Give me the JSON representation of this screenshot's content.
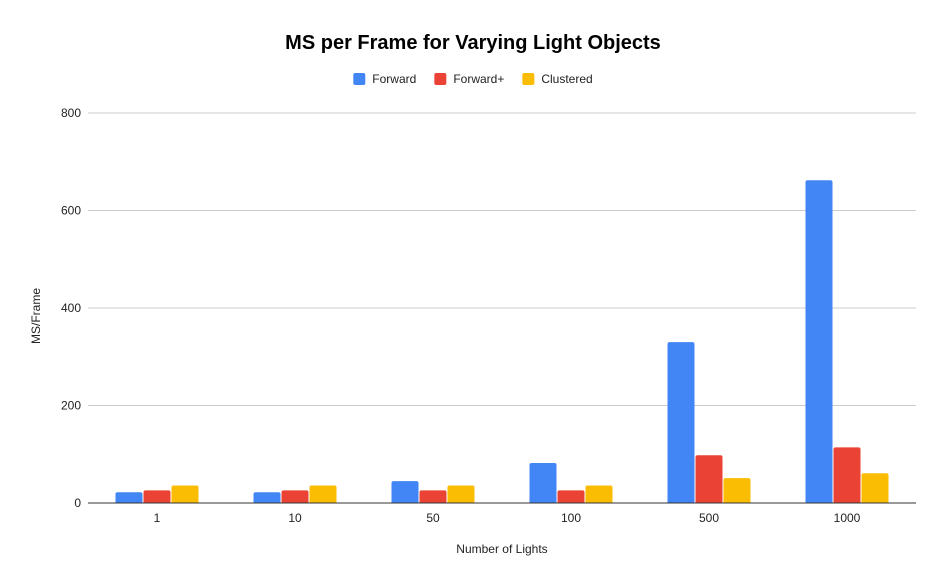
{
  "chart_data": {
    "type": "bar",
    "title": "MS per Frame for Varying Light Objects",
    "xlabel": "Number of Lights",
    "ylabel": "MS/Frame",
    "categories": [
      "1",
      "10",
      "50",
      "100",
      "500",
      "1000"
    ],
    "series": [
      {
        "name": "Forward",
        "color": "#4285f4",
        "values": [
          22,
          22,
          45,
          82,
          330,
          662
        ]
      },
      {
        "name": "Forward+",
        "color": "#ea4335",
        "values": [
          26,
          26,
          26,
          26,
          98,
          114
        ]
      },
      {
        "name": "Clustered",
        "color": "#fbbc04",
        "values": [
          36,
          36,
          36,
          36,
          51,
          61
        ]
      }
    ],
    "ylim": [
      0,
      800
    ],
    "yticks": [
      0,
      200,
      400,
      600,
      800
    ],
    "grid": true,
    "legend_position": "top"
  }
}
